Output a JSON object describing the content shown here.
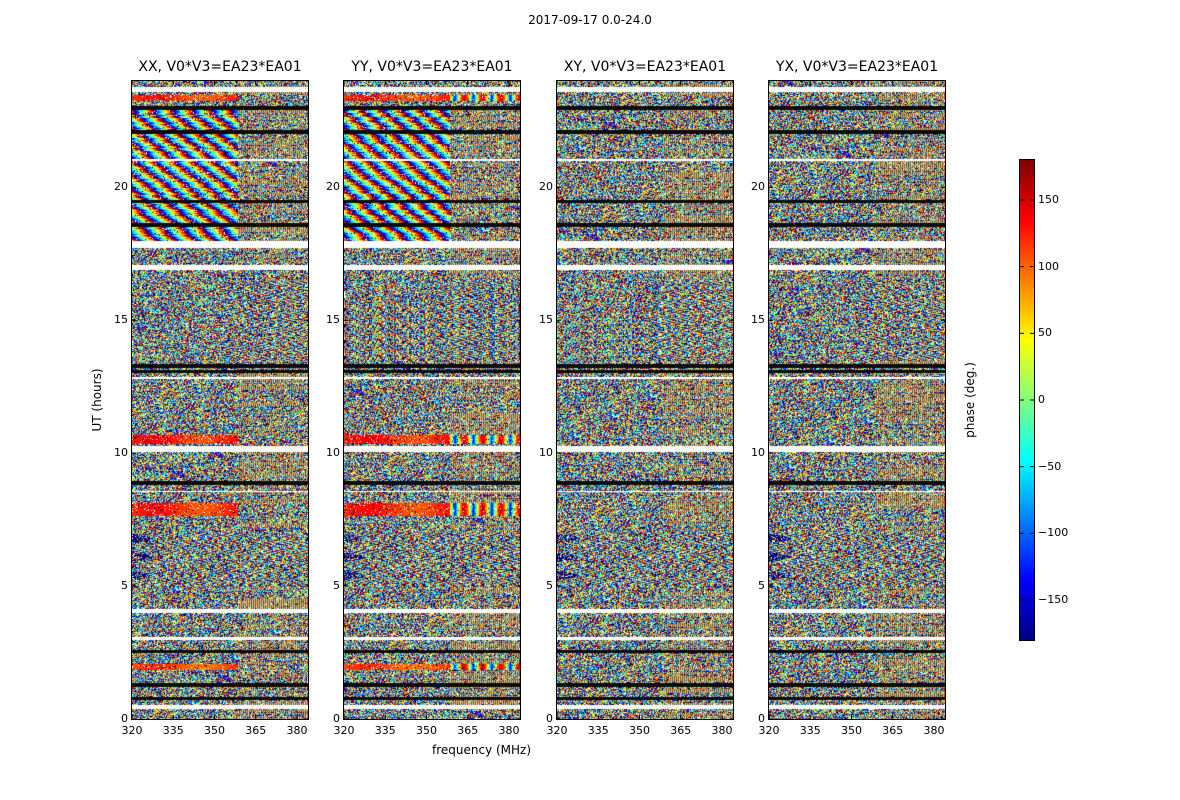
{
  "chart_data": {
    "type": "heatmap",
    "title": "2017-09-17 0.0-24.0",
    "xlabel": "frequency (MHz)",
    "ylabel": "UT (hours)",
    "xlim": [
      320,
      384
    ],
    "ylim": [
      0,
      24
    ],
    "xticks": [
      "320",
      "335",
      "350",
      "365",
      "380"
    ],
    "yticks": [
      "0",
      "5",
      "10",
      "15",
      "20"
    ],
    "colorbar": {
      "label": "phase (deg.)",
      "range": [
        -180,
        180
      ],
      "ticks": [
        "150",
        "100",
        "50",
        "0",
        "−50",
        "−100",
        "−150"
      ],
      "tick_values": [
        150,
        100,
        50,
        0,
        -50,
        -100,
        -150
      ],
      "colormap": "jet"
    },
    "panels": [
      {
        "title": "XX, V0*V3=EA23*EA01",
        "polarization": "XX"
      },
      {
        "title": "YY, V0*V3=EA23*EA01",
        "polarization": "YY"
      },
      {
        "title": "XY, V0*V3=EA23*EA01",
        "polarization": "XY"
      },
      {
        "title": "YX, V0*V3=EA23*EA01",
        "polarization": "YX"
      }
    ]
  }
}
